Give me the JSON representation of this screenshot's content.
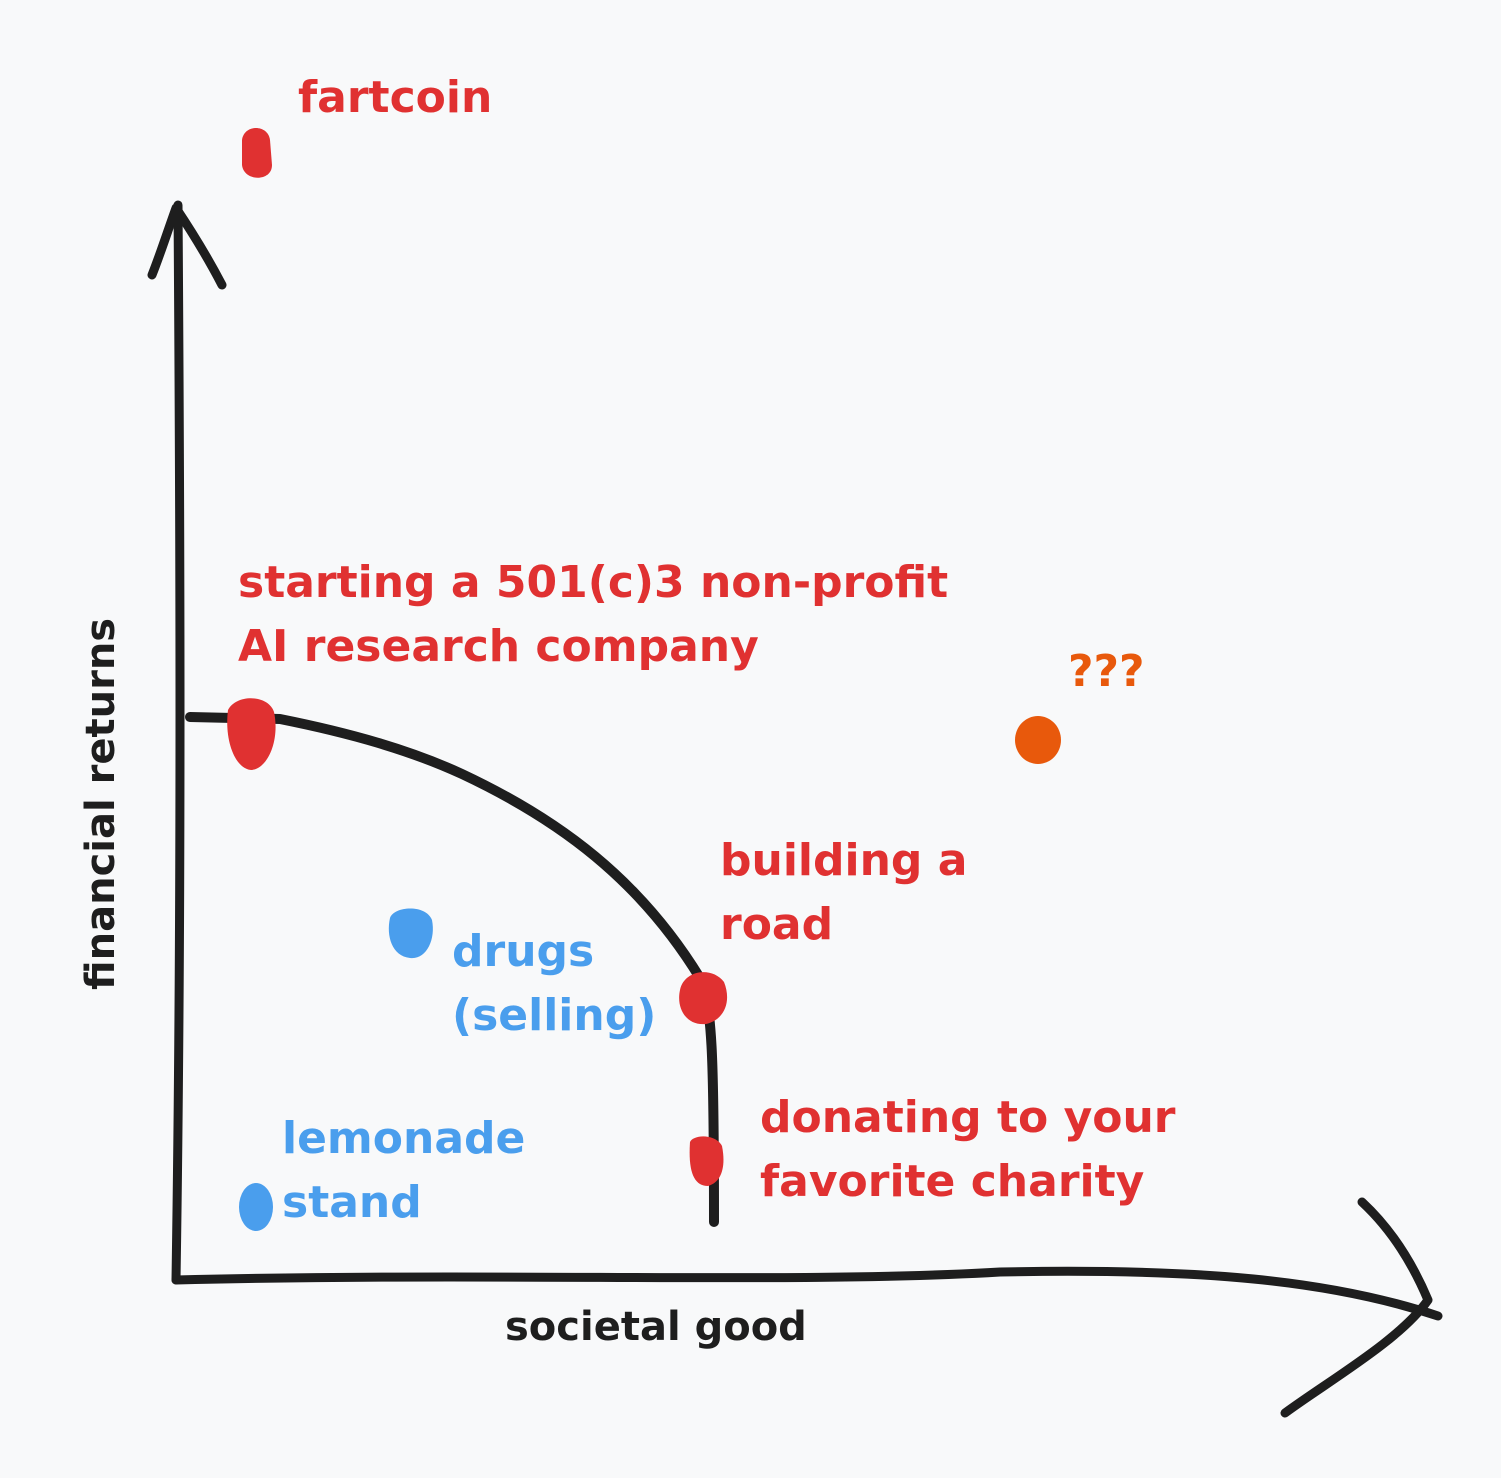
{
  "axes": {
    "x_label": "societal good",
    "y_label": "financial returns"
  },
  "points": [
    {
      "id": "fartcoin",
      "lines": [
        "fartcoin"
      ],
      "color": "#e03131",
      "category": "red"
    },
    {
      "id": "nonprofit",
      "lines": [
        "starting a 501(c)3 non-profit",
        "AI research company"
      ],
      "color": "#e03131",
      "category": "red"
    },
    {
      "id": "road",
      "lines": [
        "building a",
        "road"
      ],
      "color": "#e03131",
      "category": "red"
    },
    {
      "id": "charity",
      "lines": [
        "donating to your",
        "favorite charity"
      ],
      "color": "#e03131",
      "category": "red"
    },
    {
      "id": "drugs",
      "lines": [
        "drugs",
        "(selling)"
      ],
      "color": "#4a9eed",
      "category": "blue"
    },
    {
      "id": "lemonade",
      "lines": [
        "lemonade",
        "stand"
      ],
      "color": "#4a9eed",
      "category": "blue"
    },
    {
      "id": "unknown",
      "lines": [
        "???"
      ],
      "color": "#e8590c",
      "category": "orange"
    }
  ],
  "colors": {
    "ink": "#1e1e1e",
    "red": "#e03131",
    "blue": "#4a9eed",
    "orange": "#e8590c",
    "background": "#f8f9fa"
  }
}
